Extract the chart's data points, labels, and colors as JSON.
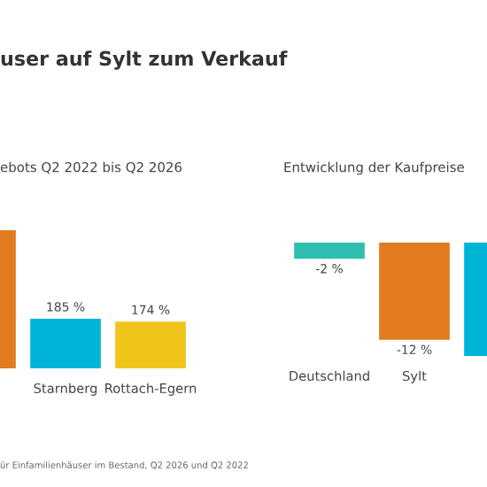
{
  "chart_data": [
    {
      "type": "bar",
      "title": "user auf Sylt zum Verkauf",
      "subtitle": "ebots Q2 2022 bis Q2 2026",
      "categories": [
        null,
        "Starnberg",
        "Rottach-Egern"
      ],
      "values": [
        515,
        185,
        174
      ],
      "colors": [
        "#e07b1f",
        "#00b4d8",
        "#f0c419"
      ],
      "value_labels": [
        null,
        "185 %",
        "174 %"
      ],
      "tick_labels": "x",
      "annotations": [
        "ür Einfamilienhäuser im Bestand, Q2 2026 und Q2 2022"
      ]
    },
    {
      "type": "bar",
      "subtitle": "Entwicklung der Kaufpreise",
      "categories": [
        "Deutschland",
        "Sylt",
        null
      ],
      "values": [
        -2,
        -12,
        -14
      ],
      "colors": [
        "#2ebfb0",
        "#e07b1f",
        "#00b4d8"
      ],
      "value_labels": [
        "-2 %",
        "-12 %",
        null
      ],
      "tick_labels": "x"
    }
  ]
}
